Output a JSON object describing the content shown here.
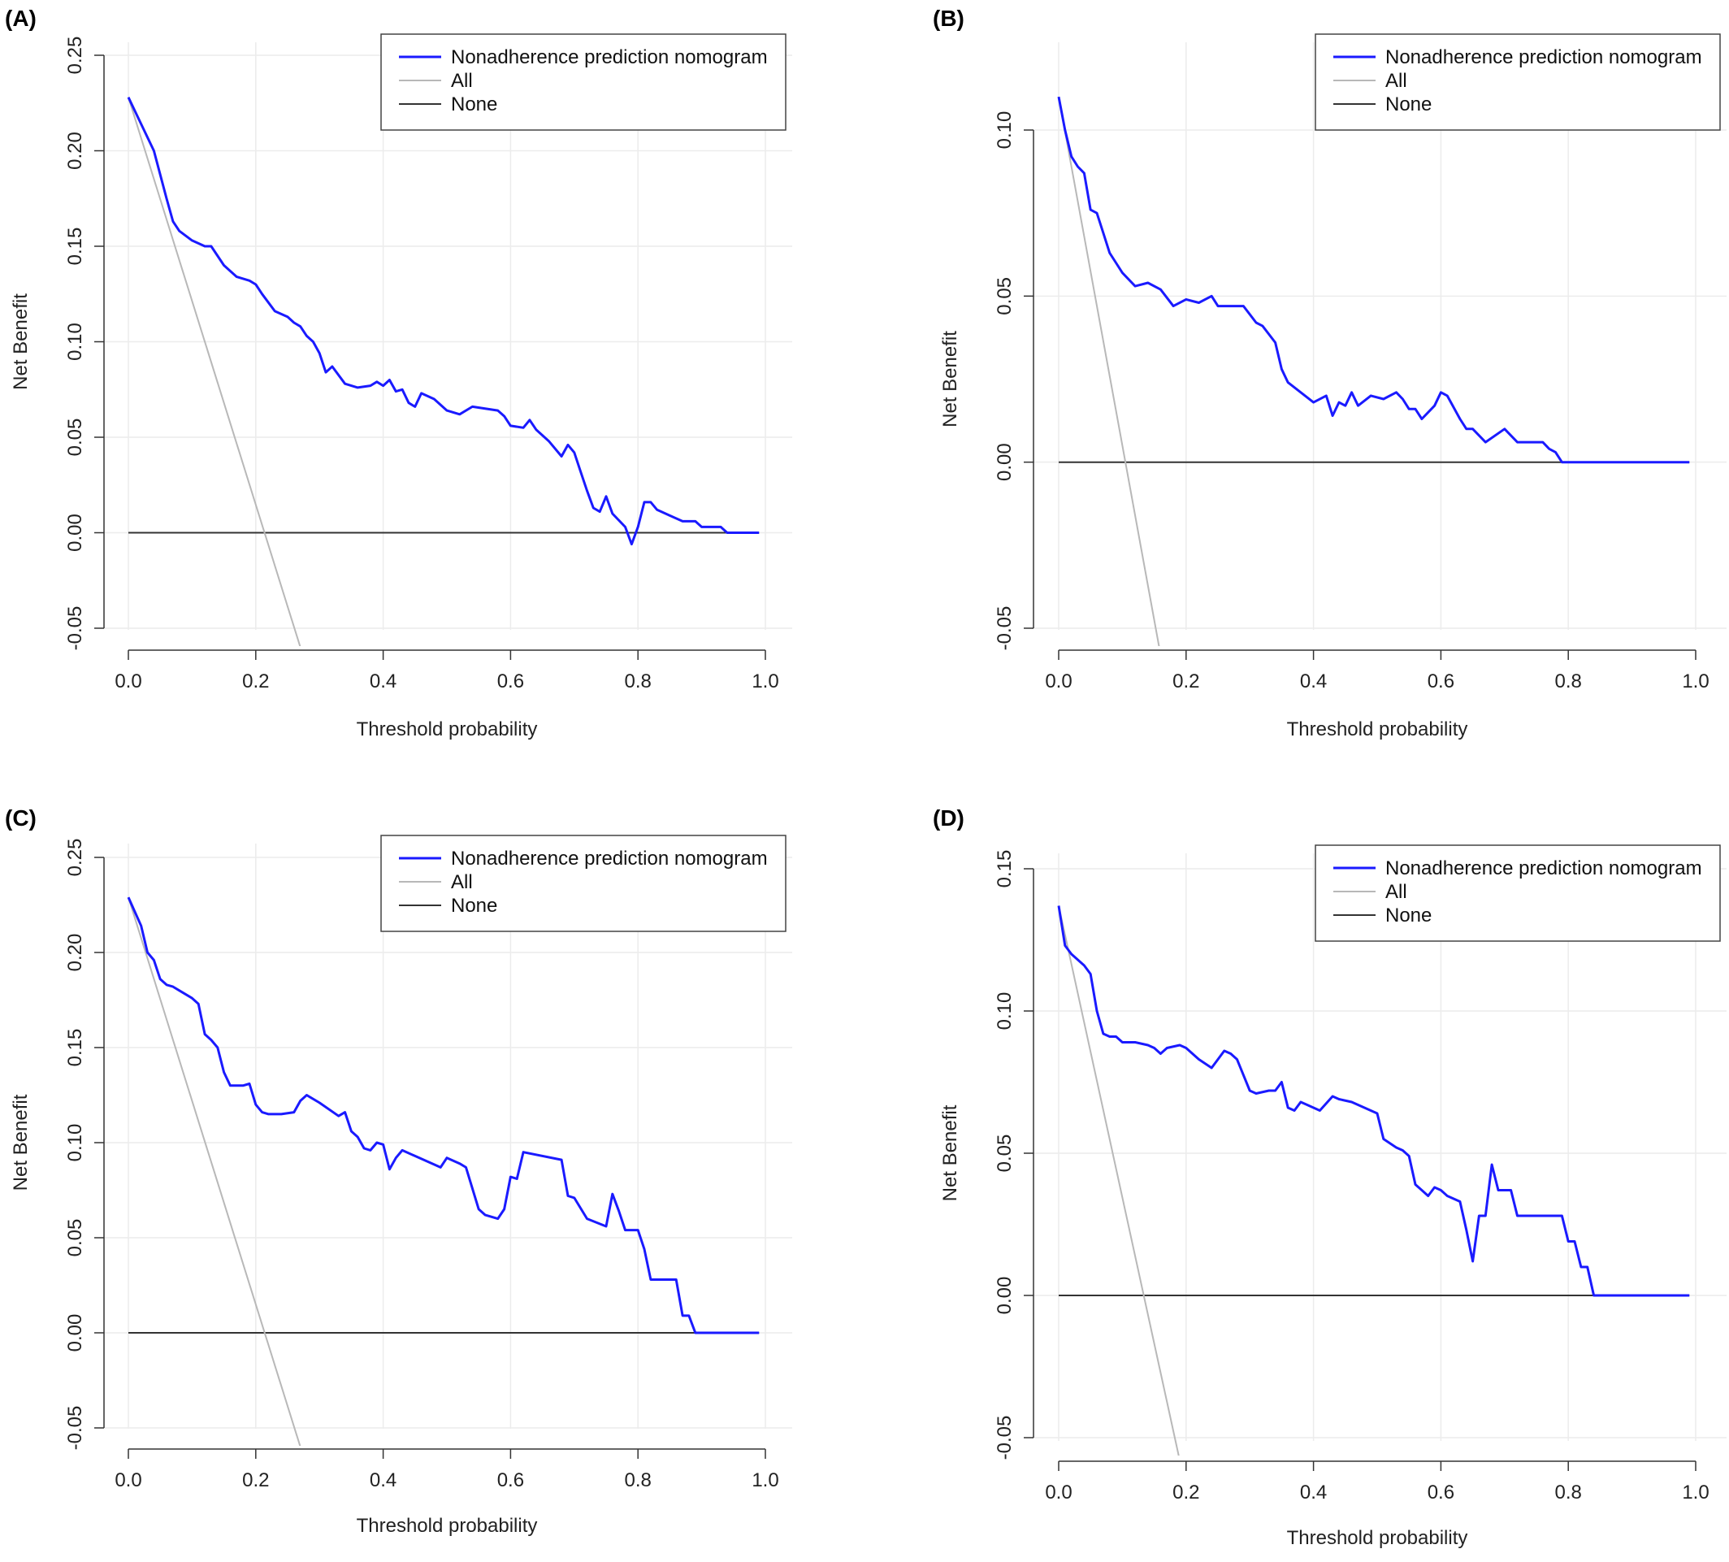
{
  "colors": {
    "model": "#1a1aff",
    "all": "#b8b8b8",
    "none": "#333333",
    "grid": "#ececec"
  },
  "chart_data": [
    {
      "type": "line",
      "panel": "(A)",
      "xlabel": "Threshold probability",
      "ylabel": "Net Benefit",
      "xlim": [
        0,
        1
      ],
      "ylim": [
        -0.05,
        0.25
      ],
      "xticks": [
        "0.0",
        "0.2",
        "0.4",
        "0.6",
        "0.8",
        "1.0"
      ],
      "yticks": [
        "-0.05",
        "0.00",
        "0.05",
        "0.10",
        "0.15",
        "0.20",
        "0.25"
      ],
      "legend": {
        "position": "top-right",
        "entries": [
          "Nonadherence prediction nomogram",
          "All",
          "None"
        ]
      },
      "series": [
        {
          "name": "Nonadherence prediction nomogram",
          "x": [
            0,
            0.02,
            0.04,
            0.06,
            0.07,
            0.08,
            0.1,
            0.12,
            0.13,
            0.15,
            0.17,
            0.19,
            0.2,
            0.21,
            0.23,
            0.25,
            0.26,
            0.27,
            0.28,
            0.29,
            0.3,
            0.31,
            0.32,
            0.34,
            0.36,
            0.38,
            0.39,
            0.4,
            0.41,
            0.42,
            0.43,
            0.44,
            0.45,
            0.46,
            0.48,
            0.5,
            0.52,
            0.54,
            0.58,
            0.59,
            0.6,
            0.62,
            0.63,
            0.64,
            0.66,
            0.68,
            0.69,
            0.7,
            0.71,
            0.72,
            0.73,
            0.74,
            0.75,
            0.76,
            0.78,
            0.79,
            0.8,
            0.81,
            0.82,
            0.83,
            0.85,
            0.87,
            0.89,
            0.9,
            0.93,
            0.94,
            0.96,
            0.99
          ],
          "y": [
            0.228,
            0.214,
            0.2,
            0.175,
            0.163,
            0.158,
            0.153,
            0.15,
            0.15,
            0.14,
            0.134,
            0.132,
            0.13,
            0.125,
            0.116,
            0.113,
            0.11,
            0.108,
            0.103,
            0.1,
            0.094,
            0.084,
            0.087,
            0.078,
            0.076,
            0.077,
            0.079,
            0.077,
            0.08,
            0.074,
            0.075,
            0.068,
            0.066,
            0.073,
            0.07,
            0.064,
            0.062,
            0.066,
            0.064,
            0.061,
            0.056,
            0.055,
            0.059,
            0.054,
            0.048,
            0.04,
            0.046,
            0.042,
            0.032,
            0.022,
            0.013,
            0.011,
            0.019,
            0.01,
            0.003,
            -0.006,
            0.003,
            0.016,
            0.016,
            0.012,
            0.009,
            0.006,
            0.006,
            0.003,
            0.003,
            0,
            0,
            0
          ]
        },
        {
          "name": "All",
          "x": [
            0,
            0.27
          ],
          "y": [
            0.228,
            -0.06
          ]
        },
        {
          "name": "None",
          "x": [
            0,
            0.99
          ],
          "y": [
            0,
            0
          ]
        }
      ]
    },
    {
      "type": "line",
      "panel": "(B)",
      "xlabel": "Threshold probability",
      "ylabel": "Net Benefit",
      "xlim": [
        0,
        1
      ],
      "ylim": [
        -0.05,
        0.1
      ],
      "xticks": [
        "0.0",
        "0.2",
        "0.4",
        "0.6",
        "0.8",
        "1.0"
      ],
      "yticks": [
        "-0.05",
        "0.00",
        "0.05",
        "0.10"
      ],
      "legend": {
        "position": "top-right",
        "entries": [
          "Nonadherence prediction nomogram",
          "All",
          "None"
        ]
      },
      "series": [
        {
          "name": "Nonadherence prediction nomogram",
          "x": [
            0,
            0.01,
            0.02,
            0.03,
            0.04,
            0.05,
            0.06,
            0.07,
            0.08,
            0.09,
            0.1,
            0.12,
            0.14,
            0.16,
            0.18,
            0.2,
            0.22,
            0.24,
            0.25,
            0.27,
            0.29,
            0.31,
            0.32,
            0.34,
            0.35,
            0.36,
            0.38,
            0.4,
            0.42,
            0.43,
            0.44,
            0.45,
            0.46,
            0.47,
            0.49,
            0.51,
            0.53,
            0.54,
            0.55,
            0.56,
            0.57,
            0.59,
            0.6,
            0.61,
            0.63,
            0.64,
            0.65,
            0.67,
            0.7,
            0.72,
            0.76,
            0.77,
            0.78,
            0.79,
            0.81,
            0.85,
            0.99
          ],
          "y": [
            0.11,
            0.1,
            0.092,
            0.089,
            0.087,
            0.076,
            0.075,
            0.069,
            0.063,
            0.06,
            0.057,
            0.053,
            0.054,
            0.052,
            0.047,
            0.049,
            0.048,
            0.05,
            0.047,
            0.047,
            0.047,
            0.042,
            0.041,
            0.036,
            0.028,
            0.024,
            0.021,
            0.018,
            0.02,
            0.014,
            0.018,
            0.017,
            0.021,
            0.017,
            0.02,
            0.019,
            0.021,
            0.019,
            0.016,
            0.016,
            0.013,
            0.017,
            0.021,
            0.02,
            0.013,
            0.01,
            0.01,
            0.006,
            0.01,
            0.006,
            0.006,
            0.004,
            0.003,
            0,
            0,
            0,
            0
          ]
        },
        {
          "name": "All",
          "x": [
            0,
            0.16
          ],
          "y": [
            0.11,
            -0.058
          ]
        },
        {
          "name": "None",
          "x": [
            0,
            0.99
          ],
          "y": [
            0,
            0
          ]
        }
      ]
    },
    {
      "type": "line",
      "panel": "(C)",
      "xlabel": "Threshold probability",
      "ylabel": "Net Benefit",
      "xlim": [
        0,
        1
      ],
      "ylim": [
        -0.05,
        0.25
      ],
      "xticks": [
        "0.0",
        "0.2",
        "0.4",
        "0.6",
        "0.8",
        "1.0"
      ],
      "yticks": [
        "-0.05",
        "0.00",
        "0.05",
        "0.10",
        "0.15",
        "0.20",
        "0.25"
      ],
      "legend": {
        "position": "top-right",
        "entries": [
          "Nonadherence prediction nomogram",
          "All",
          "None"
        ]
      },
      "series": [
        {
          "name": "Nonadherence prediction nomogram",
          "x": [
            0,
            0.02,
            0.03,
            0.04,
            0.05,
            0.06,
            0.07,
            0.08,
            0.1,
            0.11,
            0.12,
            0.13,
            0.14,
            0.15,
            0.16,
            0.18,
            0.19,
            0.2,
            0.21,
            0.22,
            0.24,
            0.26,
            0.27,
            0.28,
            0.3,
            0.33,
            0.34,
            0.35,
            0.36,
            0.37,
            0.38,
            0.39,
            0.4,
            0.41,
            0.42,
            0.43,
            0.45,
            0.47,
            0.49,
            0.5,
            0.52,
            0.53,
            0.55,
            0.56,
            0.58,
            0.59,
            0.6,
            0.61,
            0.62,
            0.68,
            0.69,
            0.7,
            0.72,
            0.75,
            0.76,
            0.77,
            0.78,
            0.8,
            0.81,
            0.82,
            0.86,
            0.87,
            0.88,
            0.89,
            0.9,
            0.99
          ],
          "y": [
            0.229,
            0.214,
            0.2,
            0.196,
            0.186,
            0.183,
            0.182,
            0.18,
            0.176,
            0.173,
            0.157,
            0.154,
            0.15,
            0.137,
            0.13,
            0.13,
            0.131,
            0.12,
            0.116,
            0.115,
            0.115,
            0.116,
            0.122,
            0.125,
            0.121,
            0.114,
            0.116,
            0.106,
            0.103,
            0.097,
            0.096,
            0.1,
            0.099,
            0.086,
            0.092,
            0.096,
            0.093,
            0.09,
            0.087,
            0.092,
            0.089,
            0.087,
            0.065,
            0.062,
            0.06,
            0.065,
            0.082,
            0.081,
            0.095,
            0.091,
            0.072,
            0.071,
            0.06,
            0.056,
            0.073,
            0.064,
            0.054,
            0.054,
            0.044,
            0.028,
            0.028,
            0.009,
            0.009,
            0,
            0,
            0
          ]
        },
        {
          "name": "All",
          "x": [
            0,
            0.27
          ],
          "y": [
            0.229,
            -0.06
          ]
        },
        {
          "name": "None",
          "x": [
            0,
            0.99
          ],
          "y": [
            0,
            0
          ]
        }
      ]
    },
    {
      "type": "line",
      "panel": "(D)",
      "xlabel": "Threshold probability",
      "ylabel": "Net Benefit",
      "xlim": [
        0,
        1
      ],
      "ylim": [
        -0.05,
        0.15
      ],
      "xticks": [
        "0.0",
        "0.2",
        "0.4",
        "0.6",
        "0.8",
        "1.0"
      ],
      "yticks": [
        "-0.05",
        "0.00",
        "0.05",
        "0.10",
        "0.15"
      ],
      "legend": {
        "position": "top-right",
        "entries": [
          "Nonadherence prediction nomogram",
          "All",
          "None"
        ]
      },
      "series": [
        {
          "name": "Nonadherence prediction nomogram",
          "x": [
            0,
            0.01,
            0.02,
            0.04,
            0.05,
            0.06,
            0.07,
            0.08,
            0.09,
            0.1,
            0.12,
            0.14,
            0.15,
            0.16,
            0.17,
            0.19,
            0.2,
            0.22,
            0.24,
            0.26,
            0.27,
            0.28,
            0.3,
            0.31,
            0.33,
            0.34,
            0.35,
            0.36,
            0.37,
            0.38,
            0.39,
            0.41,
            0.43,
            0.44,
            0.46,
            0.48,
            0.5,
            0.51,
            0.53,
            0.54,
            0.55,
            0.56,
            0.57,
            0.58,
            0.59,
            0.6,
            0.61,
            0.63,
            0.64,
            0.65,
            0.66,
            0.67,
            0.68,
            0.69,
            0.7,
            0.71,
            0.72,
            0.73,
            0.74,
            0.79,
            0.8,
            0.81,
            0.82,
            0.83,
            0.84,
            0.85,
            0.99
          ],
          "y": [
            0.137,
            0.123,
            0.12,
            0.116,
            0.113,
            0.1,
            0.092,
            0.091,
            0.091,
            0.089,
            0.089,
            0.088,
            0.087,
            0.085,
            0.087,
            0.088,
            0.087,
            0.083,
            0.08,
            0.086,
            0.085,
            0.083,
            0.072,
            0.071,
            0.072,
            0.072,
            0.075,
            0.066,
            0.065,
            0.068,
            0.067,
            0.065,
            0.07,
            0.069,
            0.068,
            0.066,
            0.064,
            0.055,
            0.052,
            0.051,
            0.049,
            0.039,
            0.037,
            0.035,
            0.038,
            0.037,
            0.035,
            0.033,
            0.023,
            0.012,
            0.028,
            0.028,
            0.046,
            0.037,
            0.037,
            0.037,
            0.028,
            0.028,
            0.028,
            0.028,
            0.019,
            0.019,
            0.01,
            0.01,
            0,
            0,
            0
          ]
        },
        {
          "name": "All",
          "x": [
            0,
            0.19
          ],
          "y": [
            0.137,
            -0.058
          ]
        },
        {
          "name": "None",
          "x": [
            0,
            0.99
          ],
          "y": [
            0,
            0
          ]
        }
      ]
    }
  ]
}
